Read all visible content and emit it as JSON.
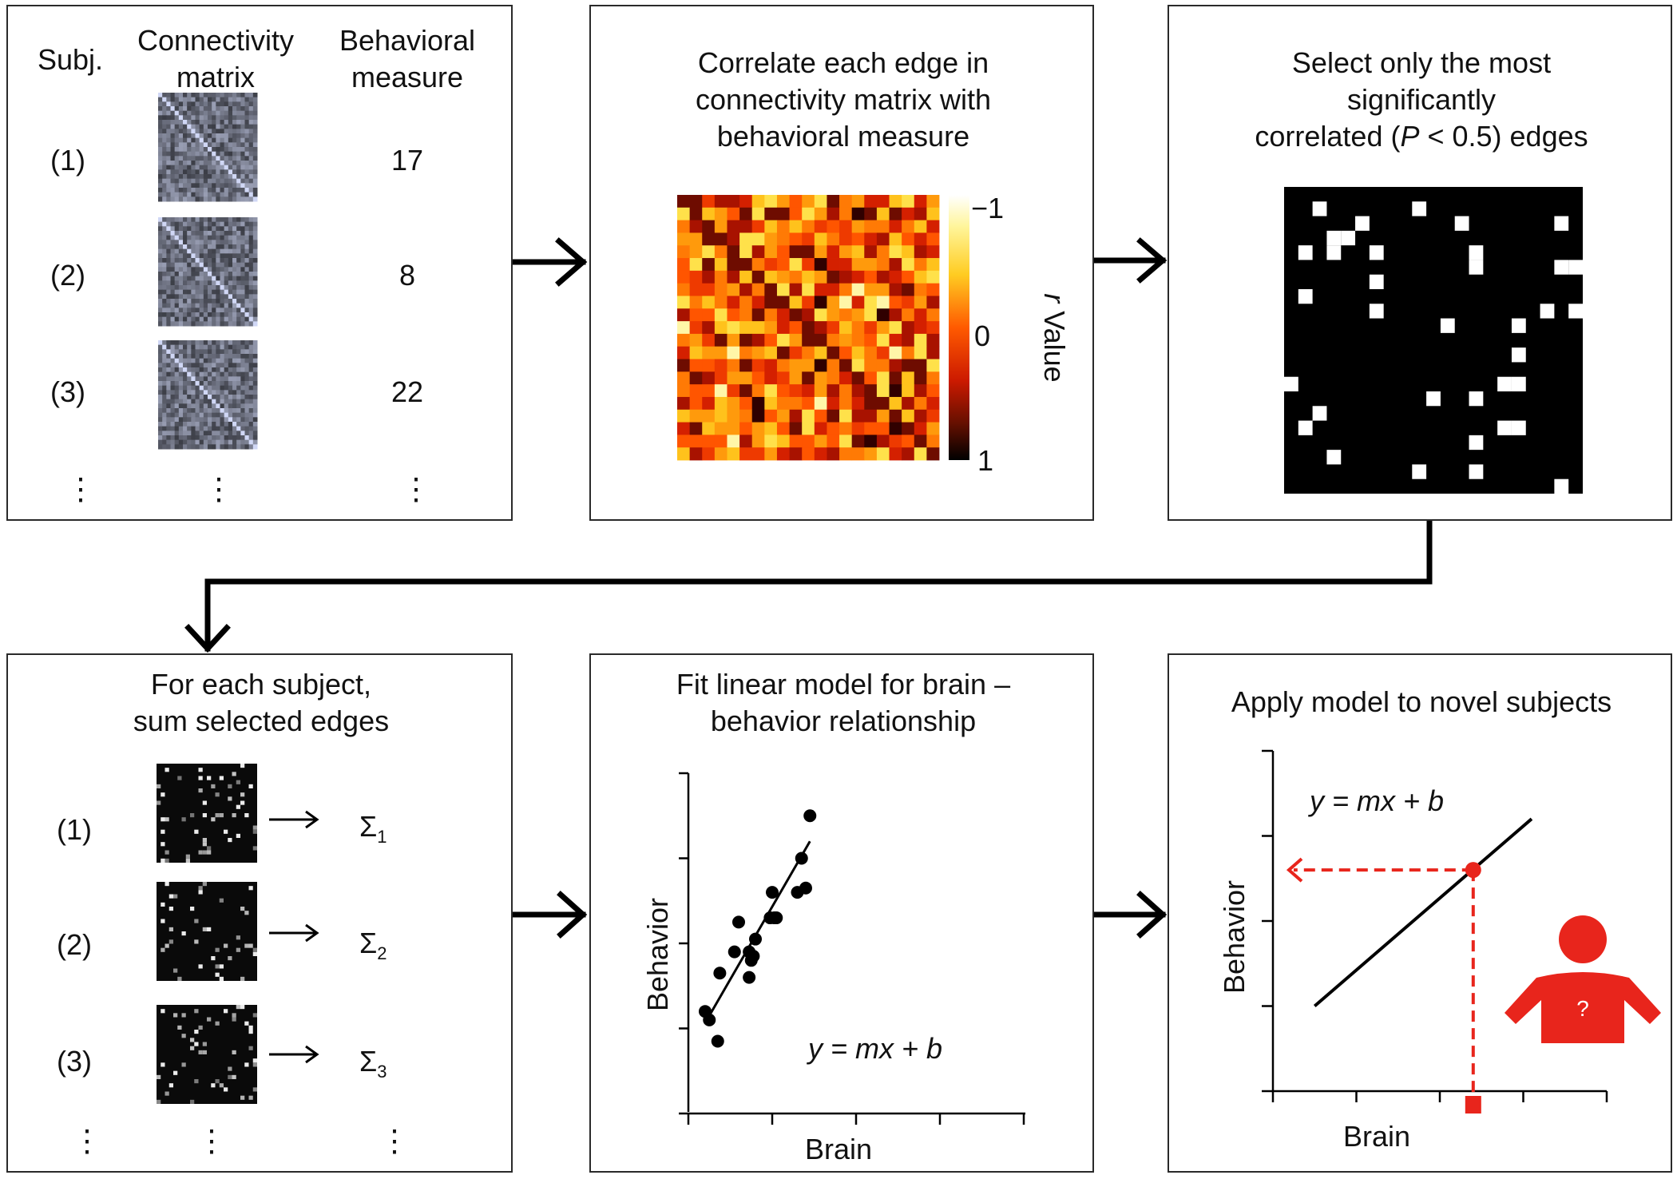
{
  "panel1": {
    "col_subj": "Subj.",
    "col_matrix": [
      "Connectivity",
      "matrix"
    ],
    "col_behavior": [
      "Behavioral",
      "measure"
    ],
    "subjects": [
      {
        "label": "(1)",
        "score": "17"
      },
      {
        "label": "(2)",
        "score": "8"
      },
      {
        "label": "(3)",
        "score": "22"
      }
    ],
    "ellipsis": "⋮"
  },
  "panel2": {
    "title": [
      "Correlate each edge in",
      "connectivity matrix with",
      "behavioral measure"
    ],
    "colorbar_label_italic": "r",
    "colorbar_label": "Value",
    "colorbar_ticks": [
      "−1",
      "0",
      "1"
    ]
  },
  "panel3": {
    "title_line1": "Select only the most",
    "title_line2": "significantly",
    "title_line3_pre": "correlated (",
    "title_line3_var": "P",
    "title_line3_post": " < 0.5) edges"
  },
  "panel4": {
    "title": [
      "For each subject,",
      "sum selected edges"
    ],
    "rows": [
      {
        "label": "(1)",
        "sigma": "Σ",
        "sub": "1"
      },
      {
        "label": "(2)",
        "sigma": "Σ",
        "sub": "2"
      },
      {
        "label": "(3)",
        "sigma": "Σ",
        "sub": "3"
      }
    ],
    "ellipsis": "⋮"
  },
  "panel5": {
    "title": [
      "Fit linear model for brain –",
      "behavior relationship"
    ],
    "xlabel": "Brain",
    "ylabel": "Behavior",
    "equation": "y = mx + b"
  },
  "panel6": {
    "title": "Apply model to novel subjects",
    "xlabel": "Brain",
    "ylabel": "Behavior",
    "equation": "y = mx + b",
    "person_mark": "?"
  },
  "chart_data": [
    {
      "type": "scatter",
      "title": "Fit linear model for brain – behavior relationship",
      "xlabel": "Brain",
      "ylabel": "Behavior",
      "xlim": [
        0,
        8
      ],
      "ylim": [
        0,
        8
      ],
      "x": [
        0.4,
        0.5,
        0.7,
        0.75,
        1.1,
        1.2,
        1.45,
        1.45,
        1.5,
        1.55,
        1.6,
        1.95,
        2.0,
        2.05,
        2.1,
        2.6,
        2.7,
        2.8,
        2.9
      ],
      "y": [
        2.4,
        2.2,
        1.7,
        3.3,
        3.8,
        4.5,
        3.2,
        3.8,
        3.6,
        3.7,
        4.1,
        4.6,
        5.2,
        4.6,
        4.6,
        5.2,
        6.0,
        5.3,
        7.0
      ],
      "fit_line": {
        "x": [
          0.5,
          2.9
        ],
        "y": [
          2.3,
          6.4
        ]
      },
      "series_colors": {
        "points": "#000000",
        "line": "#000000"
      }
    },
    {
      "type": "line",
      "title": "Apply model to novel subjects",
      "xlabel": "Brain",
      "ylabel": "Behavior",
      "xlim": [
        0,
        4
      ],
      "ylim": [
        0,
        4
      ],
      "fit_line": {
        "x": [
          0.5,
          3.1
        ],
        "y": [
          1.0,
          3.2
        ]
      },
      "prediction": {
        "x": 2.4,
        "y": 2.6
      },
      "highlight_color": "#e8251c"
    }
  ]
}
